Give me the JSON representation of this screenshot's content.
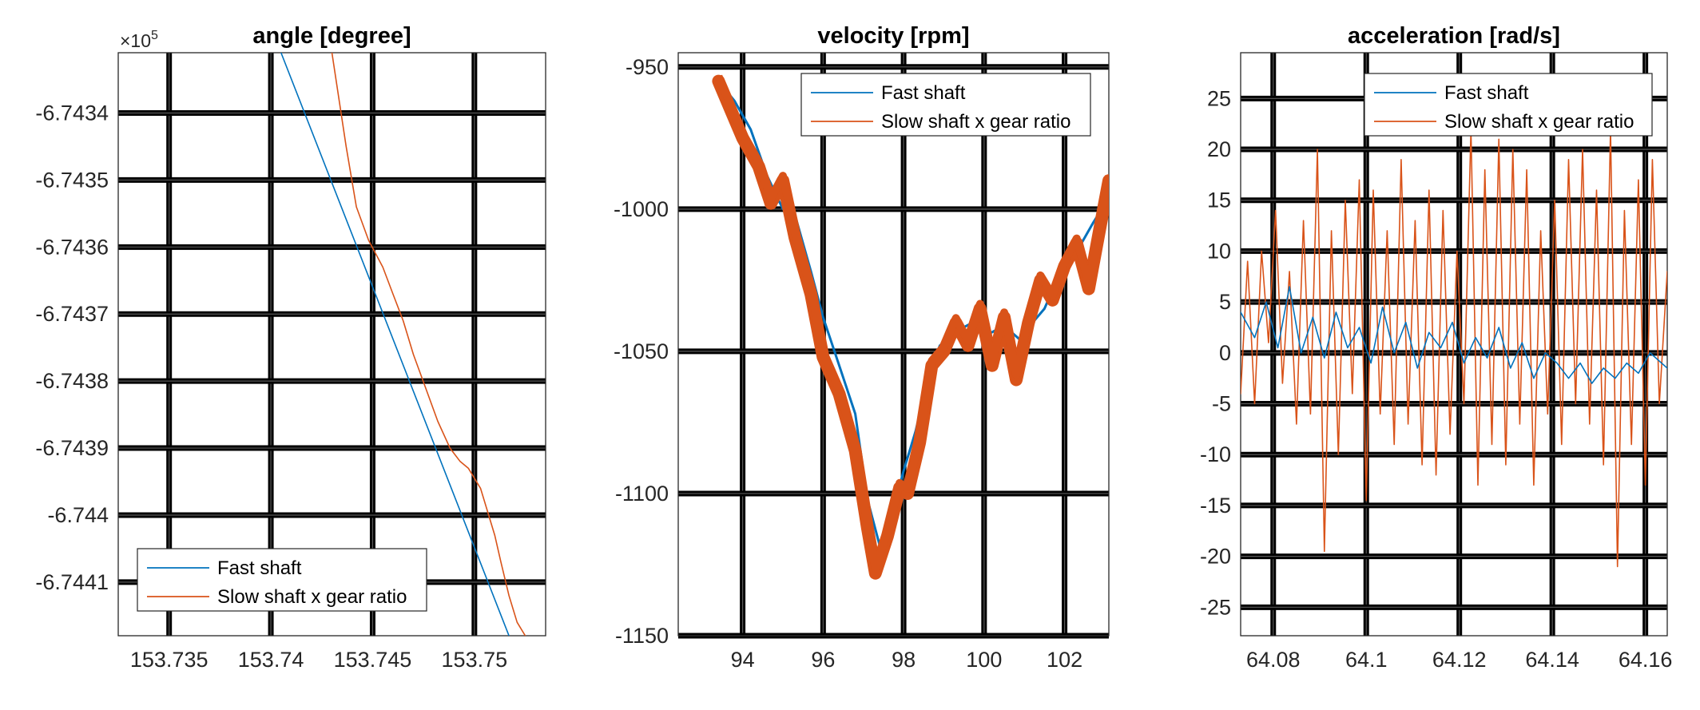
{
  "colors": {
    "fast_shaft": "#0072BD",
    "slow_shaft": "#D95319",
    "grid": "#000000",
    "axes": "#262626"
  },
  "chart_data": [
    {
      "type": "line",
      "title": "angle [degree]",
      "xlabel": "",
      "ylabel": "",
      "exponent_label": "×10",
      "exponent_power": "5",
      "xlim": [
        153.7325,
        153.7535
      ],
      "ylim": [
        -6.74418,
        -6.74331
      ],
      "xticks": [
        153.735,
        153.74,
        153.745,
        153.75
      ],
      "xticklabels": [
        "153.735",
        "153.74",
        "153.745",
        "153.75"
      ],
      "yticks": [
        -6.7434,
        -6.7435,
        -6.7436,
        -6.7437,
        -6.7438,
        -6.7439,
        -6.744,
        -6.7441
      ],
      "yticklabels": [
        "-6.7434",
        "-6.7435",
        "-6.7436",
        "-6.7437",
        "-6.7438",
        "-6.7439",
        "-6.744",
        "-6.7441"
      ],
      "grid": true,
      "legend_position": "bottom-right",
      "series": [
        {
          "name": "Fast shaft",
          "x": [
            153.7405,
            153.7517
          ],
          "y": [
            -6.74331,
            -6.74418
          ]
        },
        {
          "name": "Slow shaft x gear ratio",
          "x": [
            153.743,
            153.7437,
            153.7442,
            153.7448,
            153.7455,
            153.746,
            153.7465,
            153.747,
            153.7476,
            153.7482,
            153.7488,
            153.7493,
            153.7497,
            153.7503,
            153.7507,
            153.751,
            153.7513,
            153.7517,
            153.7521,
            153.7525
          ],
          "y": [
            -6.74331,
            -6.74345,
            -6.74354,
            -6.74359,
            -6.74363,
            -6.74367,
            -6.74371,
            -6.74376,
            -6.74381,
            -6.74386,
            -6.7439,
            -6.74392,
            -6.74393,
            -6.74396,
            -6.744,
            -6.74403,
            -6.74407,
            -6.74412,
            -6.74416,
            -6.74418
          ]
        }
      ]
    },
    {
      "type": "line",
      "title": "velocity [rpm]",
      "xlabel": "",
      "ylabel": "",
      "xlim": [
        92.4,
        103.1
      ],
      "ylim": [
        -1150,
        -945
      ],
      "xticks": [
        94,
        96,
        98,
        100,
        102
      ],
      "xticklabels": [
        "94",
        "96",
        "98",
        "100",
        "102"
      ],
      "yticks": [
        -950,
        -1000,
        -1050,
        -1100,
        -1150
      ],
      "yticklabels": [
        "-950",
        "-1000",
        "-1050",
        "-1100",
        "-1150"
      ],
      "grid": true,
      "legend_position": "top-right",
      "series": [
        {
          "name": "Fast shaft",
          "x": [
            93.4,
            93.8,
            94.2,
            94.6,
            95.0,
            95.3,
            95.7,
            96.0,
            96.4,
            96.8,
            97.1,
            97.4,
            97.7,
            98.0,
            98.3,
            98.6,
            98.9,
            99.3,
            99.7,
            100.1,
            100.5,
            100.9,
            101.2,
            101.5,
            101.9,
            102.3,
            102.7,
            103.1
          ],
          "y": [
            -955,
            -962,
            -972,
            -988,
            -1000,
            -1002,
            -1022,
            -1038,
            -1055,
            -1072,
            -1102,
            -1118,
            -1108,
            -1092,
            -1078,
            -1060,
            -1048,
            -1043,
            -1040,
            -1044,
            -1041,
            -1046,
            -1040,
            -1035,
            -1022,
            -1015,
            -1005,
            -996
          ]
        },
        {
          "name": "Slow shaft x gear ratio",
          "x": [
            93.4,
            93.7,
            94.0,
            94.4,
            94.7,
            95.0,
            95.3,
            95.7,
            96.0,
            96.4,
            96.8,
            97.1,
            97.3,
            97.6,
            97.9,
            98.1,
            98.4,
            98.7,
            99.0,
            99.3,
            99.6,
            99.9,
            100.2,
            100.5,
            100.8,
            101.1,
            101.4,
            101.7,
            102.0,
            102.3,
            102.6,
            102.9,
            103.1
          ],
          "y": [
            -955,
            -965,
            -975,
            -985,
            -998,
            -990,
            -1010,
            -1030,
            -1052,
            -1065,
            -1085,
            -1112,
            -1128,
            -1115,
            -1098,
            -1100,
            -1082,
            -1055,
            -1050,
            -1040,
            -1048,
            -1035,
            -1055,
            -1038,
            -1060,
            -1040,
            -1025,
            -1032,
            -1020,
            -1012,
            -1028,
            -1005,
            -990
          ]
        }
      ]
    },
    {
      "type": "line",
      "title": "acceleration [rad/s]",
      "xlabel": "",
      "ylabel": "",
      "xlim": [
        64.073,
        64.1647
      ],
      "ylim": [
        -27.8,
        29.5
      ],
      "xticks": [
        64.08,
        64.1,
        64.12,
        64.14,
        64.16
      ],
      "xticklabels": [
        "64.08",
        "64.1",
        "64.12",
        "64.14",
        "64.16"
      ],
      "yticks": [
        25,
        20,
        15,
        10,
        5,
        0,
        -5,
        -10,
        -15,
        -20,
        -25
      ],
      "yticklabels": [
        "25",
        "20",
        "15",
        "10",
        "5",
        "0",
        "-5",
        "-10",
        "-15",
        "-20",
        "-25"
      ],
      "grid": true,
      "legend_position": "top-right",
      "series": [
        {
          "name": "Fast shaft",
          "x": [
            64.073,
            64.076,
            64.0785,
            64.081,
            64.0835,
            64.086,
            64.0885,
            64.091,
            64.0935,
            64.096,
            64.0985,
            64.101,
            64.1035,
            64.106,
            64.1085,
            64.111,
            64.1135,
            64.116,
            64.1185,
            64.121,
            64.1235,
            64.126,
            64.1285,
            64.131,
            64.1335,
            64.136,
            64.1385,
            64.141,
            64.1435,
            64.146,
            64.1485,
            64.151,
            64.1535,
            64.156,
            64.1585,
            64.161,
            64.1647
          ],
          "y": [
            4,
            1.5,
            5,
            0.5,
            6.5,
            0,
            3.5,
            -0.5,
            4,
            0.5,
            2.5,
            -1,
            4.5,
            0,
            3,
            -1.5,
            2,
            0.5,
            3,
            -1,
            1.5,
            -0.5,
            2.5,
            -1.5,
            1,
            -2.5,
            0,
            -1,
            -2.5,
            -1,
            -3,
            -1.5,
            -2.5,
            -1,
            -2,
            0,
            -1.5
          ]
        },
        {
          "name": "Slow shaft x gear ratio",
          "x": [
            64.073,
            64.0745,
            64.076,
            64.0775,
            64.079,
            64.0805,
            64.082,
            64.0835,
            64.085,
            64.0865,
            64.088,
            64.0895,
            64.091,
            64.0925,
            64.094,
            64.0955,
            64.097,
            64.0985,
            64.1,
            64.1015,
            64.103,
            64.1045,
            64.106,
            64.1075,
            64.109,
            64.1105,
            64.112,
            64.1135,
            64.115,
            64.1165,
            64.118,
            64.1195,
            64.121,
            64.1225,
            64.124,
            64.1255,
            64.127,
            64.1285,
            64.13,
            64.1315,
            64.133,
            64.1345,
            64.136,
            64.1375,
            64.139,
            64.1405,
            64.142,
            64.1435,
            64.145,
            64.1465,
            64.148,
            64.1495,
            64.151,
            64.1525,
            64.154,
            64.1555,
            64.157,
            64.1585,
            64.16,
            64.1615,
            64.163,
            64.1647
          ],
          "y": [
            -4,
            9,
            -5,
            10,
            1,
            14,
            -3,
            8,
            -7,
            13,
            -6,
            20,
            -19.5,
            12,
            -10,
            15,
            -4,
            17,
            -14.5,
            16,
            -6,
            12,
            -9,
            19,
            -7,
            13,
            -11,
            16,
            -12,
            14,
            -8,
            10,
            -5,
            22,
            -13,
            18,
            -9,
            21,
            -11,
            20,
            -7,
            18,
            -13,
            12,
            -6,
            15,
            -9,
            19,
            -5,
            20,
            -7,
            16,
            -11,
            22,
            -21,
            14,
            -9,
            17,
            -13,
            19,
            -5,
            8
          ]
        }
      ]
    }
  ]
}
